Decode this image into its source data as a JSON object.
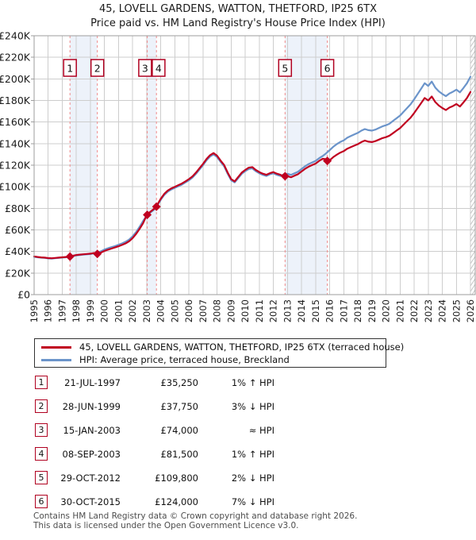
{
  "title": "45, LOVELL GARDENS, WATTON, THETFORD, IP25 6TX",
  "subtitle": "Price paid vs. HM Land Registry's House Price Index (HPI)",
  "legend": {
    "items": [
      {
        "id": "property",
        "label": "45, LOVELL GARDENS, WATTON, THETFORD, IP25 6TX (terraced house)",
        "color": "#c00020"
      },
      {
        "id": "hpi",
        "label": "HPI: Average price, terraced house, Breckland",
        "color": "#6b94ca"
      }
    ]
  },
  "chart_data": {
    "type": "line",
    "title": "Price paid vs. HM Land Registry's House Price Index (HPI)",
    "xlabel": "",
    "ylabel": "",
    "grid": true,
    "legend_position": "below",
    "x_start": 1995,
    "x_step": 0.25,
    "x_axis_years": [
      "1995",
      "1996",
      "1997",
      "1998",
      "1999",
      "2000",
      "2001",
      "2002",
      "2003",
      "2004",
      "2005",
      "2006",
      "2007",
      "2008",
      "2009",
      "2010",
      "2011",
      "2012",
      "2013",
      "2014",
      "2015",
      "2016",
      "2017",
      "2018",
      "2019",
      "2020",
      "2021",
      "2022",
      "2023",
      "2024",
      "2025",
      "2026"
    ],
    "ylim": [
      0,
      240
    ],
    "y_tick_step": 20,
    "y_tick_labels": [
      "£0",
      "£20K",
      "£40K",
      "£60K",
      "£80K",
      "£100K",
      "£120K",
      "£140K",
      "£160K",
      "£180K",
      "£200K",
      "£220K",
      "£240K"
    ],
    "colors": {
      "property": "#c00020",
      "hpi": "#6b94ca",
      "dashed": "#f08a8a",
      "band": "#edf2fa",
      "grid": "#cdcdcd",
      "border": "#9e9e9e",
      "flag_border": "#b00020",
      "hatch": "#c4c4c4"
    },
    "series": [
      {
        "id": "property",
        "name": "45, LOVELL GARDENS, WATTON, THETFORD, IP25 6TX (terraced house)",
        "color": "#c00020",
        "values": [
          35.4,
          34.9,
          34.5,
          34.3,
          33.9,
          33.7,
          34.0,
          34.3,
          34.6,
          34.9,
          35.3,
          36.0,
          36.7,
          37.1,
          37.4,
          37.7,
          38.0,
          38.6,
          37.7,
          39.0,
          40.5,
          41.7,
          42.7,
          43.7,
          44.8,
          46.1,
          47.5,
          49.5,
          52.4,
          56.3,
          61.1,
          66.4,
          73.7,
          76.8,
          79.3,
          83.3,
          88.9,
          93.4,
          96.5,
          98.5,
          100.0,
          101.5,
          103.0,
          105.0,
          107.1,
          109.6,
          113.1,
          117.2,
          121.2,
          125.7,
          129.3,
          131.3,
          128.8,
          124.2,
          120.2,
          113.1,
          107.1,
          105.0,
          109.1,
          113.1,
          115.6,
          117.7,
          118.2,
          115.6,
          113.6,
          112.1,
          111.1,
          112.6,
          113.6,
          112.1,
          111.1,
          109.3,
          109.8,
          108.8,
          110.3,
          111.7,
          114.2,
          116.6,
          118.6,
          120.1,
          121.5,
          124.0,
          125.9,
          125.5,
          124.6,
          127.4,
          129.7,
          131.6,
          133.0,
          135.3,
          136.7,
          138.1,
          139.5,
          141.4,
          142.8,
          141.8,
          141.4,
          142.3,
          143.7,
          145.1,
          146.0,
          147.4,
          149.7,
          152.1,
          154.4,
          157.6,
          160.9,
          164.1,
          168.3,
          173.0,
          177.6,
          182.3,
          180.0,
          183.7,
          178.6,
          175.3,
          173.0,
          171.1,
          173.4,
          174.8,
          176.7,
          174.4,
          178.1,
          182.3,
          187.9
        ]
      },
      {
        "id": "hpi",
        "name": "HPI: Average price, terraced house, Breckland",
        "color": "#6b94ca",
        "values": [
          35.0,
          34.6,
          34.2,
          34.0,
          33.6,
          33.4,
          33.7,
          34.0,
          34.3,
          34.6,
          35.0,
          35.6,
          36.3,
          36.7,
          37.0,
          37.3,
          37.6,
          38.2,
          38.9,
          40.2,
          41.8,
          43.0,
          44.0,
          45.0,
          46.2,
          47.5,
          49.0,
          51.0,
          54.0,
          58.0,
          63.0,
          68.5,
          73.0,
          76.0,
          78.5,
          82.5,
          88.0,
          92.5,
          95.5,
          97.5,
          99.0,
          100.5,
          102.0,
          104.0,
          106.0,
          108.5,
          112.0,
          116.0,
          120.0,
          124.5,
          128.0,
          130.0,
          127.5,
          123.0,
          119.0,
          112.0,
          106.0,
          104.0,
          108.0,
          112.0,
          114.5,
          116.5,
          117.0,
          114.5,
          112.5,
          111.0,
          110.0,
          111.5,
          112.5,
          111.0,
          110.0,
          111.5,
          112.0,
          111.0,
          112.5,
          114.0,
          116.5,
          119.0,
          121.0,
          122.5,
          124.0,
          126.5,
          128.5,
          131.0,
          134.0,
          137.0,
          139.5,
          141.5,
          143.0,
          145.5,
          147.0,
          148.5,
          150.0,
          152.0,
          153.5,
          152.5,
          152.0,
          153.0,
          154.5,
          156.0,
          157.0,
          158.5,
          161.0,
          163.5,
          166.0,
          169.5,
          173.0,
          176.5,
          181.0,
          186.0,
          191.0,
          196.0,
          193.5,
          197.5,
          192.0,
          188.5,
          186.0,
          184.0,
          186.5,
          188.0,
          190.0,
          187.5,
          191.5,
          196.0,
          202.0
        ]
      }
    ],
    "sales": [
      {
        "label": "1",
        "x": 1997.55,
        "price_k": 35.25
      },
      {
        "label": "2",
        "x": 1999.49,
        "price_k": 37.75
      },
      {
        "label": "3",
        "x": 2003.04,
        "price_k": 74.0
      },
      {
        "label": "4",
        "x": 2003.69,
        "price_k": 81.5
      },
      {
        "label": "5",
        "x": 2012.83,
        "price_k": 109.8
      },
      {
        "label": "6",
        "x": 2015.83,
        "price_k": 124.0
      }
    ],
    "bands": [
      [
        1997.55,
        1999.49
      ],
      [
        2003.04,
        2003.69
      ],
      [
        2012.83,
        2015.83
      ]
    ]
  },
  "table": {
    "rows": [
      {
        "num": "1",
        "date": "21-JUL-1997",
        "price": "£35,250",
        "hpi": "1% ↑ HPI"
      },
      {
        "num": "2",
        "date": "28-JUN-1999",
        "price": "£37,750",
        "hpi": "3% ↓ HPI"
      },
      {
        "num": "3",
        "date": "15-JAN-2003",
        "price": "£74,000",
        "hpi": "≈ HPI"
      },
      {
        "num": "4",
        "date": "08-SEP-2003",
        "price": "£81,500",
        "hpi": "1% ↑ HPI"
      },
      {
        "num": "5",
        "date": "29-OCT-2012",
        "price": "£109,800",
        "hpi": "2% ↓ HPI"
      },
      {
        "num": "6",
        "date": "30-OCT-2015",
        "price": "£124,000",
        "hpi": "7% ↓ HPI"
      }
    ]
  },
  "footer": {
    "line1": "Contains HM Land Registry data © Crown copyright and database right 2026.",
    "line2": "This data is licensed under the Open Government Licence v3.0."
  }
}
